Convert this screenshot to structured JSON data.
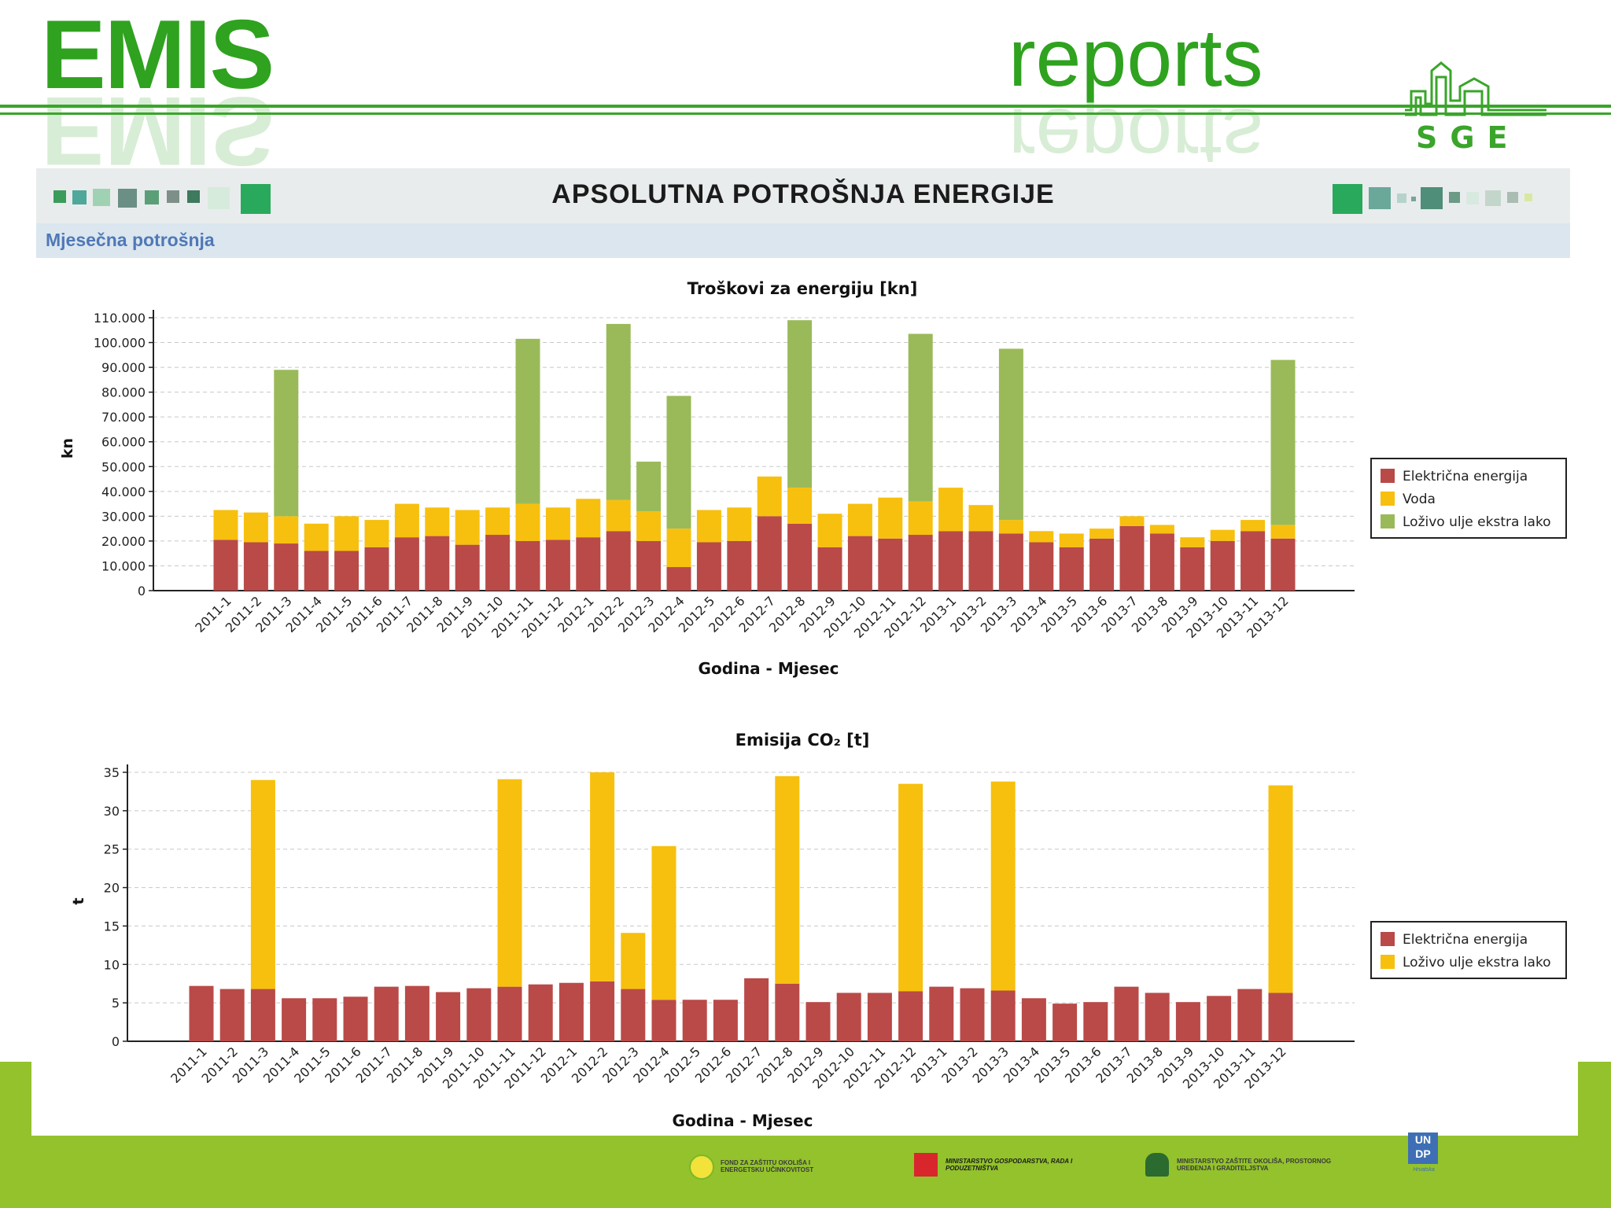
{
  "header": {
    "left_title": "EMIS",
    "right_title": "reports",
    "logo_text": "SGE"
  },
  "band": {
    "title": "APSOLUTNA POTROŠNJA ENERGIJE",
    "subtitle": "Mjesečna potrošnja"
  },
  "footer": {
    "logo1": "FOND ZA ZAŠTITU OKOLIŠA I ENERGETSKU UČINKOVITOST",
    "logo2": "MINISTARSTVO GOSPODARSTVA, RADA I PODUZETNIŠTVA",
    "logo3": "MINISTARSTVO ZAŠTITE OKOLIŠA, PROSTORNOG UREĐENJA I GRADITELJSTVA",
    "logo4": "UN DP",
    "logo4_sub": "Hrvatska"
  },
  "colors": {
    "accent_green": "#2fa21f",
    "electric": "#b94a48",
    "water": "#f7c00e",
    "oil_cost": "#9aba59",
    "oil_co2": "#f7c00e",
    "footer_green": "#93c22c"
  },
  "chart_data": [
    {
      "type": "bar",
      "stacked": true,
      "title": "Troškovi za energiju [kn]",
      "xlabel": "Godina - Mjesec",
      "ylabel": "kn",
      "ylim": [
        0,
        110000
      ],
      "yticks": [
        "0",
        "10.000",
        "20.000",
        "30.000",
        "40.000",
        "50.000",
        "60.000",
        "70.000",
        "80.000",
        "90.000",
        "100.000",
        "110.000"
      ],
      "grid": true,
      "legend_position": "right",
      "categories": [
        "2011-1",
        "2011-2",
        "2011-3",
        "2011-4",
        "2011-5",
        "2011-6",
        "2011-7",
        "2011-8",
        "2011-9",
        "2011-10",
        "2011-11",
        "2011-12",
        "2012-1",
        "2012-2",
        "2012-3",
        "2012-4",
        "2012-5",
        "2012-6",
        "2012-7",
        "2012-8",
        "2012-9",
        "2012-10",
        "2012-11",
        "2012-12",
        "2013-1",
        "2013-2",
        "2013-3",
        "2013-4",
        "2013-5",
        "2013-6",
        "2013-7",
        "2013-8",
        "2013-9",
        "2013-10",
        "2013-11",
        "2013-12"
      ],
      "series": [
        {
          "name": "Električna energija",
          "color": "#b94a48",
          "values": [
            20500,
            19500,
            19000,
            16000,
            16000,
            17500,
            21500,
            22000,
            18500,
            22500,
            20000,
            20500,
            21500,
            24000,
            20000,
            9500,
            19500,
            20000,
            30000,
            27000,
            17500,
            22000,
            21000,
            22500,
            24000,
            24000,
            23000,
            19500,
            17500,
            21000,
            26000,
            23000,
            17500,
            20000,
            24000,
            21000
          ]
        },
        {
          "name": "Voda",
          "color": "#f7c00e",
          "values": [
            12000,
            12000,
            11000,
            11000,
            14000,
            11000,
            13500,
            11500,
            14000,
            11000,
            15000,
            13000,
            15500,
            12500,
            12000,
            15500,
            13000,
            13500,
            16000,
            14500,
            13500,
            13000,
            16500,
            13500,
            17500,
            10500,
            5500,
            4500,
            5500,
            4000,
            4000,
            3500,
            4000,
            4500,
            4500,
            5500
          ]
        },
        {
          "name": "Loživo ulje ekstra lako",
          "color": "#9aba59",
          "values": [
            0,
            0,
            59000,
            0,
            0,
            0,
            0,
            0,
            0,
            0,
            66500,
            0,
            0,
            71000,
            20000,
            53500,
            0,
            0,
            0,
            67500,
            0,
            0,
            0,
            67500,
            0,
            0,
            69000,
            0,
            0,
            0,
            0,
            0,
            0,
            0,
            0,
            66500
          ]
        }
      ]
    },
    {
      "type": "bar",
      "stacked": true,
      "title": "Emisija CO₂ [t]",
      "xlabel": "Godina - Mjesec",
      "ylabel": "t",
      "ylim": [
        0,
        35
      ],
      "yticks": [
        "0",
        "5",
        "10",
        "15",
        "20",
        "25",
        "30",
        "35"
      ],
      "grid": true,
      "legend_position": "right",
      "categories": [
        "2011-1",
        "2011-2",
        "2011-3",
        "2011-4",
        "2011-5",
        "2011-6",
        "2011-7",
        "2011-8",
        "2011-9",
        "2011-10",
        "2011-11",
        "2011-12",
        "2012-1",
        "2012-2",
        "2012-3",
        "2012-4",
        "2012-5",
        "2012-6",
        "2012-7",
        "2012-8",
        "2012-9",
        "2012-10",
        "2012-11",
        "2012-12",
        "2013-1",
        "2013-2",
        "2013-3",
        "2013-4",
        "2013-5",
        "2013-6",
        "2013-7",
        "2013-8",
        "2013-9",
        "2013-10",
        "2013-11",
        "2013-12"
      ],
      "series": [
        {
          "name": "Električna energija",
          "color": "#b94a48",
          "values": [
            7.2,
            6.8,
            6.8,
            5.6,
            5.6,
            5.8,
            7.1,
            7.2,
            6.4,
            6.9,
            7.1,
            7.4,
            7.6,
            7.8,
            6.8,
            5.4,
            5.4,
            5.4,
            8.2,
            7.5,
            5.1,
            6.3,
            6.3,
            6.5,
            7.1,
            6.9,
            6.6,
            5.6,
            4.9,
            5.1,
            7.1,
            6.3,
            5.1,
            5.9,
            6.8,
            6.3
          ]
        },
        {
          "name": "Loživo ulje ekstra lako",
          "color": "#f7c00e",
          "values": [
            0,
            0,
            27.2,
            0,
            0,
            0,
            0,
            0,
            0,
            0,
            27.0,
            0,
            0,
            27.2,
            7.3,
            20.0,
            0,
            0,
            0,
            27.0,
            0,
            0,
            0,
            27.0,
            0,
            0,
            27.2,
            0,
            0,
            0,
            0,
            0,
            0,
            0,
            0,
            27.0
          ]
        }
      ]
    }
  ]
}
